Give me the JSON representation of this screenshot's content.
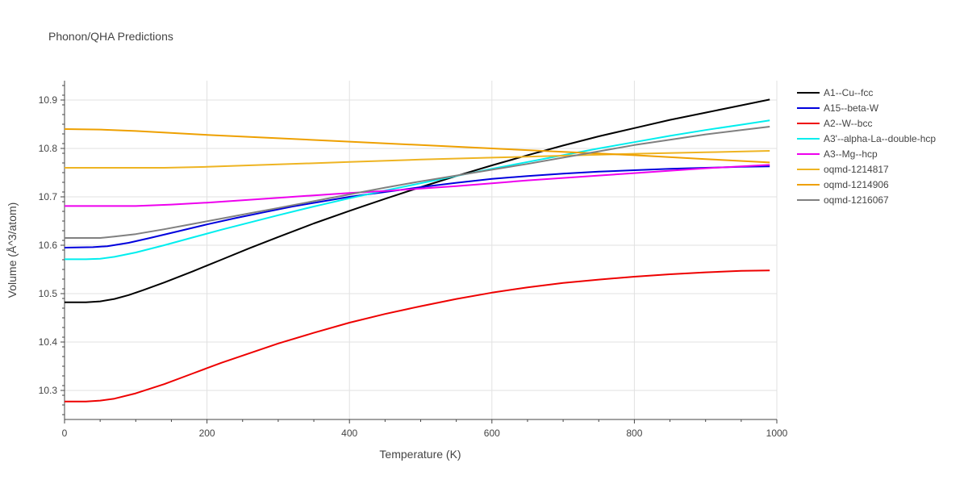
{
  "chart_data": {
    "type": "line",
    "title": "Phonon/QHA Predictions",
    "xlabel": "Temperature (K)",
    "ylabel": "Volume (Å^3/atom)",
    "xlim": [
      0,
      1000
    ],
    "ylim": [
      10.24,
      10.94
    ],
    "xticks": [
      0,
      200,
      400,
      600,
      800,
      1000
    ],
    "xtick_labels": [
      "0",
      "200",
      "400",
      "600",
      "800",
      "1000"
    ],
    "yticks": [
      10.3,
      10.4,
      10.5,
      10.6,
      10.7,
      10.8,
      10.9
    ],
    "ytick_labels": [
      "10.3",
      "10.4",
      "10.5",
      "10.6",
      "10.7",
      "10.8",
      "10.9"
    ],
    "grid": true,
    "legend_position": "right",
    "series": [
      {
        "name": "A1--Cu--fcc",
        "color": "#000000",
        "x": [
          0,
          30,
          50,
          70,
          90,
          110,
          140,
          180,
          220,
          260,
          300,
          350,
          400,
          450,
          500,
          550,
          600,
          650,
          700,
          750,
          800,
          850,
          900,
          950,
          990
        ],
        "y": [
          10.482,
          10.482,
          10.484,
          10.489,
          10.497,
          10.507,
          10.523,
          10.546,
          10.57,
          10.594,
          10.617,
          10.645,
          10.671,
          10.696,
          10.72,
          10.743,
          10.765,
          10.786,
          10.806,
          10.825,
          10.842,
          10.859,
          10.874,
          10.889,
          10.901
        ]
      },
      {
        "name": "A15--beta-W",
        "color": "#0000dd",
        "x": [
          0,
          40,
          60,
          90,
          120,
          160,
          200,
          240,
          280,
          320,
          360,
          400,
          450,
          500,
          550,
          600,
          650,
          700,
          750,
          800,
          850,
          900,
          950,
          990
        ],
        "y": [
          10.595,
          10.596,
          10.598,
          10.605,
          10.615,
          10.629,
          10.643,
          10.656,
          10.668,
          10.68,
          10.69,
          10.7,
          10.71,
          10.72,
          10.729,
          10.737,
          10.743,
          10.748,
          10.752,
          10.755,
          10.758,
          10.76,
          10.762,
          10.763
        ]
      },
      {
        "name": "A2--W--bcc",
        "color": "#ee0000",
        "x": [
          0,
          30,
          50,
          70,
          100,
          140,
          180,
          220,
          260,
          300,
          350,
          400,
          450,
          500,
          550,
          600,
          650,
          700,
          750,
          800,
          850,
          900,
          950,
          990
        ],
        "y": [
          10.277,
          10.277,
          10.279,
          10.283,
          10.294,
          10.313,
          10.335,
          10.357,
          10.377,
          10.397,
          10.419,
          10.44,
          10.458,
          10.474,
          10.489,
          10.502,
          10.513,
          10.522,
          10.529,
          10.535,
          10.54,
          10.544,
          10.547,
          10.548
        ]
      },
      {
        "name": "A3'--alpha-La--double-hcp",
        "color": "#00eeee",
        "x": [
          0,
          30,
          50,
          70,
          100,
          140,
          180,
          220,
          260,
          300,
          350,
          400,
          450,
          500,
          550,
          600,
          650,
          700,
          750,
          800,
          850,
          900,
          950,
          990
        ],
        "y": [
          10.571,
          10.571,
          10.572,
          10.576,
          10.585,
          10.6,
          10.616,
          10.632,
          10.647,
          10.662,
          10.68,
          10.697,
          10.713,
          10.728,
          10.743,
          10.758,
          10.772,
          10.786,
          10.8,
          10.813,
          10.826,
          10.838,
          10.849,
          10.858
        ]
      },
      {
        "name": "A3--Mg--hcp",
        "color": "#ee00ee",
        "x": [
          0,
          50,
          100,
          150,
          200,
          250,
          300,
          350,
          400,
          450,
          500,
          550,
          600,
          650,
          700,
          750,
          800,
          850,
          900,
          950,
          990
        ],
        "y": [
          10.681,
          10.681,
          10.681,
          10.684,
          10.688,
          10.693,
          10.698,
          10.703,
          10.708,
          10.712,
          10.717,
          10.722,
          10.728,
          10.734,
          10.739,
          10.744,
          10.749,
          10.754,
          10.759,
          10.763,
          10.766
        ]
      },
      {
        "name": "oqmd-1214817",
        "color": "#eeb422",
        "x": [
          0,
          50,
          100,
          140,
          200,
          300,
          400,
          500,
          600,
          700,
          800,
          900,
          990
        ],
        "y": [
          10.76,
          10.76,
          10.76,
          10.76,
          10.762,
          10.767,
          10.772,
          10.777,
          10.781,
          10.785,
          10.789,
          10.792,
          10.795
        ]
      },
      {
        "name": "oqmd-1214906",
        "color": "#eea000",
        "x": [
          0,
          50,
          100,
          200,
          300,
          400,
          500,
          600,
          700,
          800,
          900,
          990
        ],
        "y": [
          10.84,
          10.839,
          10.836,
          10.828,
          10.821,
          10.814,
          10.807,
          10.8,
          10.793,
          10.786,
          10.778,
          10.771
        ]
      },
      {
        "name": "oqmd-1216067",
        "color": "#808080",
        "x": [
          0,
          30,
          50,
          70,
          100,
          140,
          180,
          220,
          260,
          300,
          350,
          400,
          450,
          500,
          550,
          600,
          650,
          700,
          750,
          800,
          850,
          900,
          950,
          990
        ],
        "y": [
          10.615,
          10.615,
          10.615,
          10.618,
          10.623,
          10.633,
          10.644,
          10.655,
          10.666,
          10.677,
          10.691,
          10.705,
          10.719,
          10.732,
          10.744,
          10.756,
          10.768,
          10.781,
          10.794,
          10.807,
          10.818,
          10.829,
          10.838,
          10.845
        ]
      }
    ]
  }
}
